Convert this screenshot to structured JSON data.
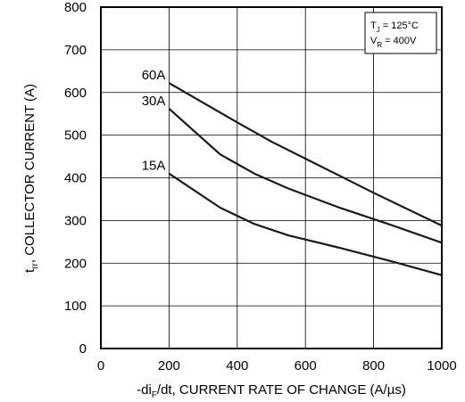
{
  "chart_data": {
    "type": "line",
    "ylabel": {
      "main": "t",
      "sub": "rr",
      "rest": ", COLLECTOR CURRENT (A)"
    },
    "xlabel": {
      "pre": "-di",
      "sub": "F",
      "rest": "/dt, CURRENT RATE OF CHANGE (A/µs)"
    },
    "xlim": [
      0,
      1000
    ],
    "ylim": [
      0,
      800
    ],
    "xticks": [
      0,
      200,
      400,
      600,
      800,
      1000
    ],
    "yticks": [
      0,
      100,
      200,
      300,
      400,
      500,
      600,
      700,
      800
    ],
    "grid": true,
    "conditions": {
      "tj": {
        "main": "T",
        "sub": "J",
        "rest": " = 125°C"
      },
      "vr": {
        "main": "V",
        "sub": "R",
        "rest": " = 400V"
      }
    },
    "series": [
      {
        "name": "60A",
        "x": [
          200,
          400,
          500,
          600,
          800,
          1000
        ],
        "y": [
          622,
          530,
          485,
          445,
          365,
          288
        ]
      },
      {
        "name": "30A",
        "x": [
          200,
          350,
          450,
          550,
          700,
          850,
          1000
        ],
        "y": [
          562,
          455,
          410,
          375,
          330,
          290,
          248
        ]
      },
      {
        "name": "15A",
        "x": [
          200,
          350,
          450,
          550,
          700,
          850,
          1000
        ],
        "y": [
          410,
          330,
          292,
          265,
          236,
          205,
          172
        ]
      }
    ]
  }
}
